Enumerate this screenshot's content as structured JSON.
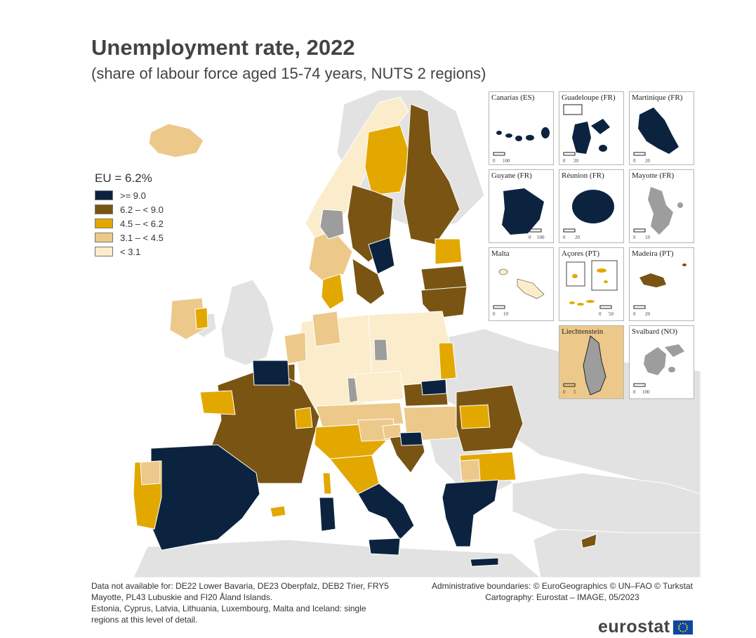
{
  "title": "Unemployment rate, 2022",
  "subtitle": "(share of labour force aged 15-74 years, NUTS 2 regions)",
  "legend": {
    "title": "EU = 6.2%",
    "items": [
      {
        "label": ">= 9.0",
        "color": "#0c2340"
      },
      {
        "label": "6.2 – < 9.0",
        "color": "#7a5413"
      },
      {
        "label": "4.5 – < 6.2",
        "color": "#e3a800"
      },
      {
        "label": "3.1 – < 4.5",
        "color": "#ecc98a"
      },
      {
        "label": "< 3.1",
        "color": "#fbeccb"
      }
    ]
  },
  "colors": {
    "no_data": "#9d9d9d",
    "non_eu_land": "#e2e2e2",
    "sea": "#ffffff",
    "border": "#ffffff"
  },
  "insets": [
    {
      "label": "Canarias (ES)",
      "scale": [
        "0",
        "100"
      ]
    },
    {
      "label": "Guadeloupe (FR)",
      "scale": [
        "0",
        "20"
      ]
    },
    {
      "label": "Martinique (FR)",
      "scale": [
        "0",
        "20"
      ]
    },
    {
      "label": "Guyane (FR)",
      "scale": [
        "0",
        "100"
      ]
    },
    {
      "label": "Réunion (FR)",
      "scale": [
        "0",
        "20"
      ]
    },
    {
      "label": "Mayotte (FR)",
      "scale": [
        "0",
        "10"
      ]
    },
    {
      "label": "Malta",
      "scale": [
        "0",
        "10"
      ]
    },
    {
      "label": "Açores (PT)",
      "scale": [
        "0",
        "50"
      ]
    },
    {
      "label": "Madeira (PT)",
      "scale": [
        "0",
        "20"
      ]
    },
    {
      "label": "Liechtenstein",
      "scale": [
        "0",
        "5"
      ]
    },
    {
      "label": "Svalbard (NO)",
      "scale": [
        "0",
        "100"
      ]
    }
  ],
  "footnote": [
    "Data not available for: DE22 Lower Bavaria, DE23 Oberpfalz, DEB2 Trier, FRY5",
    "Mayotte, PL43 Lubuskie and FI20 Åland Islands.",
    "Estonia, Cyprus, Latvia, Lithuania, Luxembourg, Malta and Iceland: single",
    "regions at this level of detail."
  ],
  "credits": [
    "Administrative boundaries: © EuroGeographics © UN–FAO © Turkstat",
    "Cartography: Eurostat – IMAGE, 05/2023"
  ],
  "logo": "eurostat"
}
